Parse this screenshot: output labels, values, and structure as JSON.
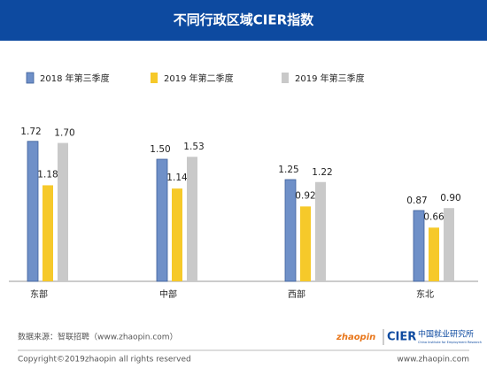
{
  "chart_data": {
    "type": "bar",
    "title": "不同行政区域CIER指数",
    "categories": [
      "东部",
      "中部",
      "西部",
      "东北"
    ],
    "series": [
      {
        "name": "2018 年第三季度",
        "color": "#6f90c8",
        "values": [
          1.72,
          1.5,
          1.25,
          0.87
        ],
        "value_labels": [
          "1.72",
          "1.50",
          "1.25",
          "0.87"
        ]
      },
      {
        "name": "2019 年第二季度",
        "color": "#f6c92a",
        "values": [
          1.18,
          1.14,
          0.92,
          0.66
        ],
        "value_labels": [
          "1.18",
          "1.14",
          "0.92",
          "0.66"
        ]
      },
      {
        "name": "2019 年第三季度",
        "color": "#c9c9c9",
        "values": [
          1.7,
          1.53,
          1.22,
          0.9
        ],
        "value_labels": [
          "1.70",
          "1.53",
          "1.22",
          "0.90"
        ]
      }
    ]
  },
  "footer": {
    "source": "数据来源：智联招聘（www.zhaopin.com）",
    "copyright": "Copyright©2019zhaopin all rights reserved",
    "website": "www.zhaopin.com",
    "logo_zhaopin": "zhaopin",
    "logo_cier": "CIER",
    "logo_cier_cn": "中国就业研究所",
    "logo_cier_en": "China Institute for Employment Research"
  }
}
